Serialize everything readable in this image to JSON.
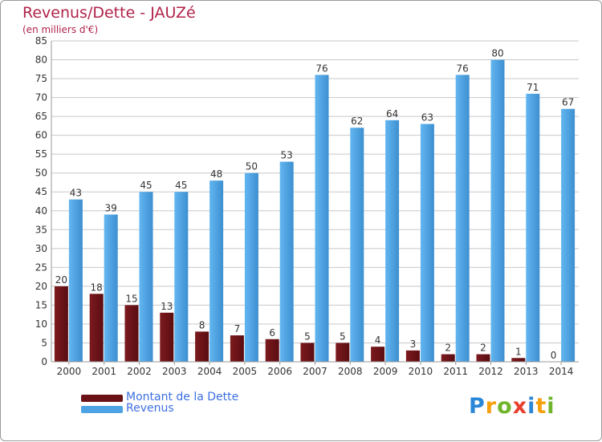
{
  "header": {
    "title": "Revenus/Dette - JAUZé",
    "subtitle": "(en milliers d'€)"
  },
  "legend": {
    "dette_label": "Montant de la Dette",
    "revenus_label": "Revenus"
  },
  "logo": {
    "text": "Proxiti",
    "letters": [
      "P",
      "r",
      "o",
      "x",
      "i",
      "t",
      "i"
    ],
    "colors": [
      "#2a86d6",
      "#f5a00c",
      "#6fb52c",
      "#e8402f",
      "#2a86d6",
      "#f5a00c",
      "#6fb52c"
    ]
  },
  "colors": {
    "dette": "#6b1216",
    "revenus": "#4ea3e2",
    "grid": "#c8c8c8",
    "title": "#b0234a"
  },
  "chart_data": {
    "type": "bar",
    "title": "Revenus/Dette - JAUZé",
    "subtitle": "(en milliers d'€)",
    "xlabel": "",
    "ylabel": "",
    "ylim": [
      0,
      85
    ],
    "ytick_step": 5,
    "grid": true,
    "legend_position": "bottom-left",
    "categories": [
      "2000",
      "2001",
      "2002",
      "2003",
      "2004",
      "2005",
      "2006",
      "2007",
      "2008",
      "2009",
      "2010",
      "2011",
      "2012",
      "2013",
      "2014"
    ],
    "series": [
      {
        "name": "Montant de la Dette",
        "color": "#6b1216",
        "values": [
          20,
          18,
          15,
          13,
          8,
          7,
          6,
          5,
          5,
          4,
          3,
          2,
          2,
          1,
          0
        ]
      },
      {
        "name": "Revenus",
        "color": "#4ea3e2",
        "values": [
          43,
          39,
          45,
          45,
          48,
          50,
          53,
          76,
          62,
          64,
          63,
          76,
          80,
          71,
          67
        ]
      }
    ]
  }
}
